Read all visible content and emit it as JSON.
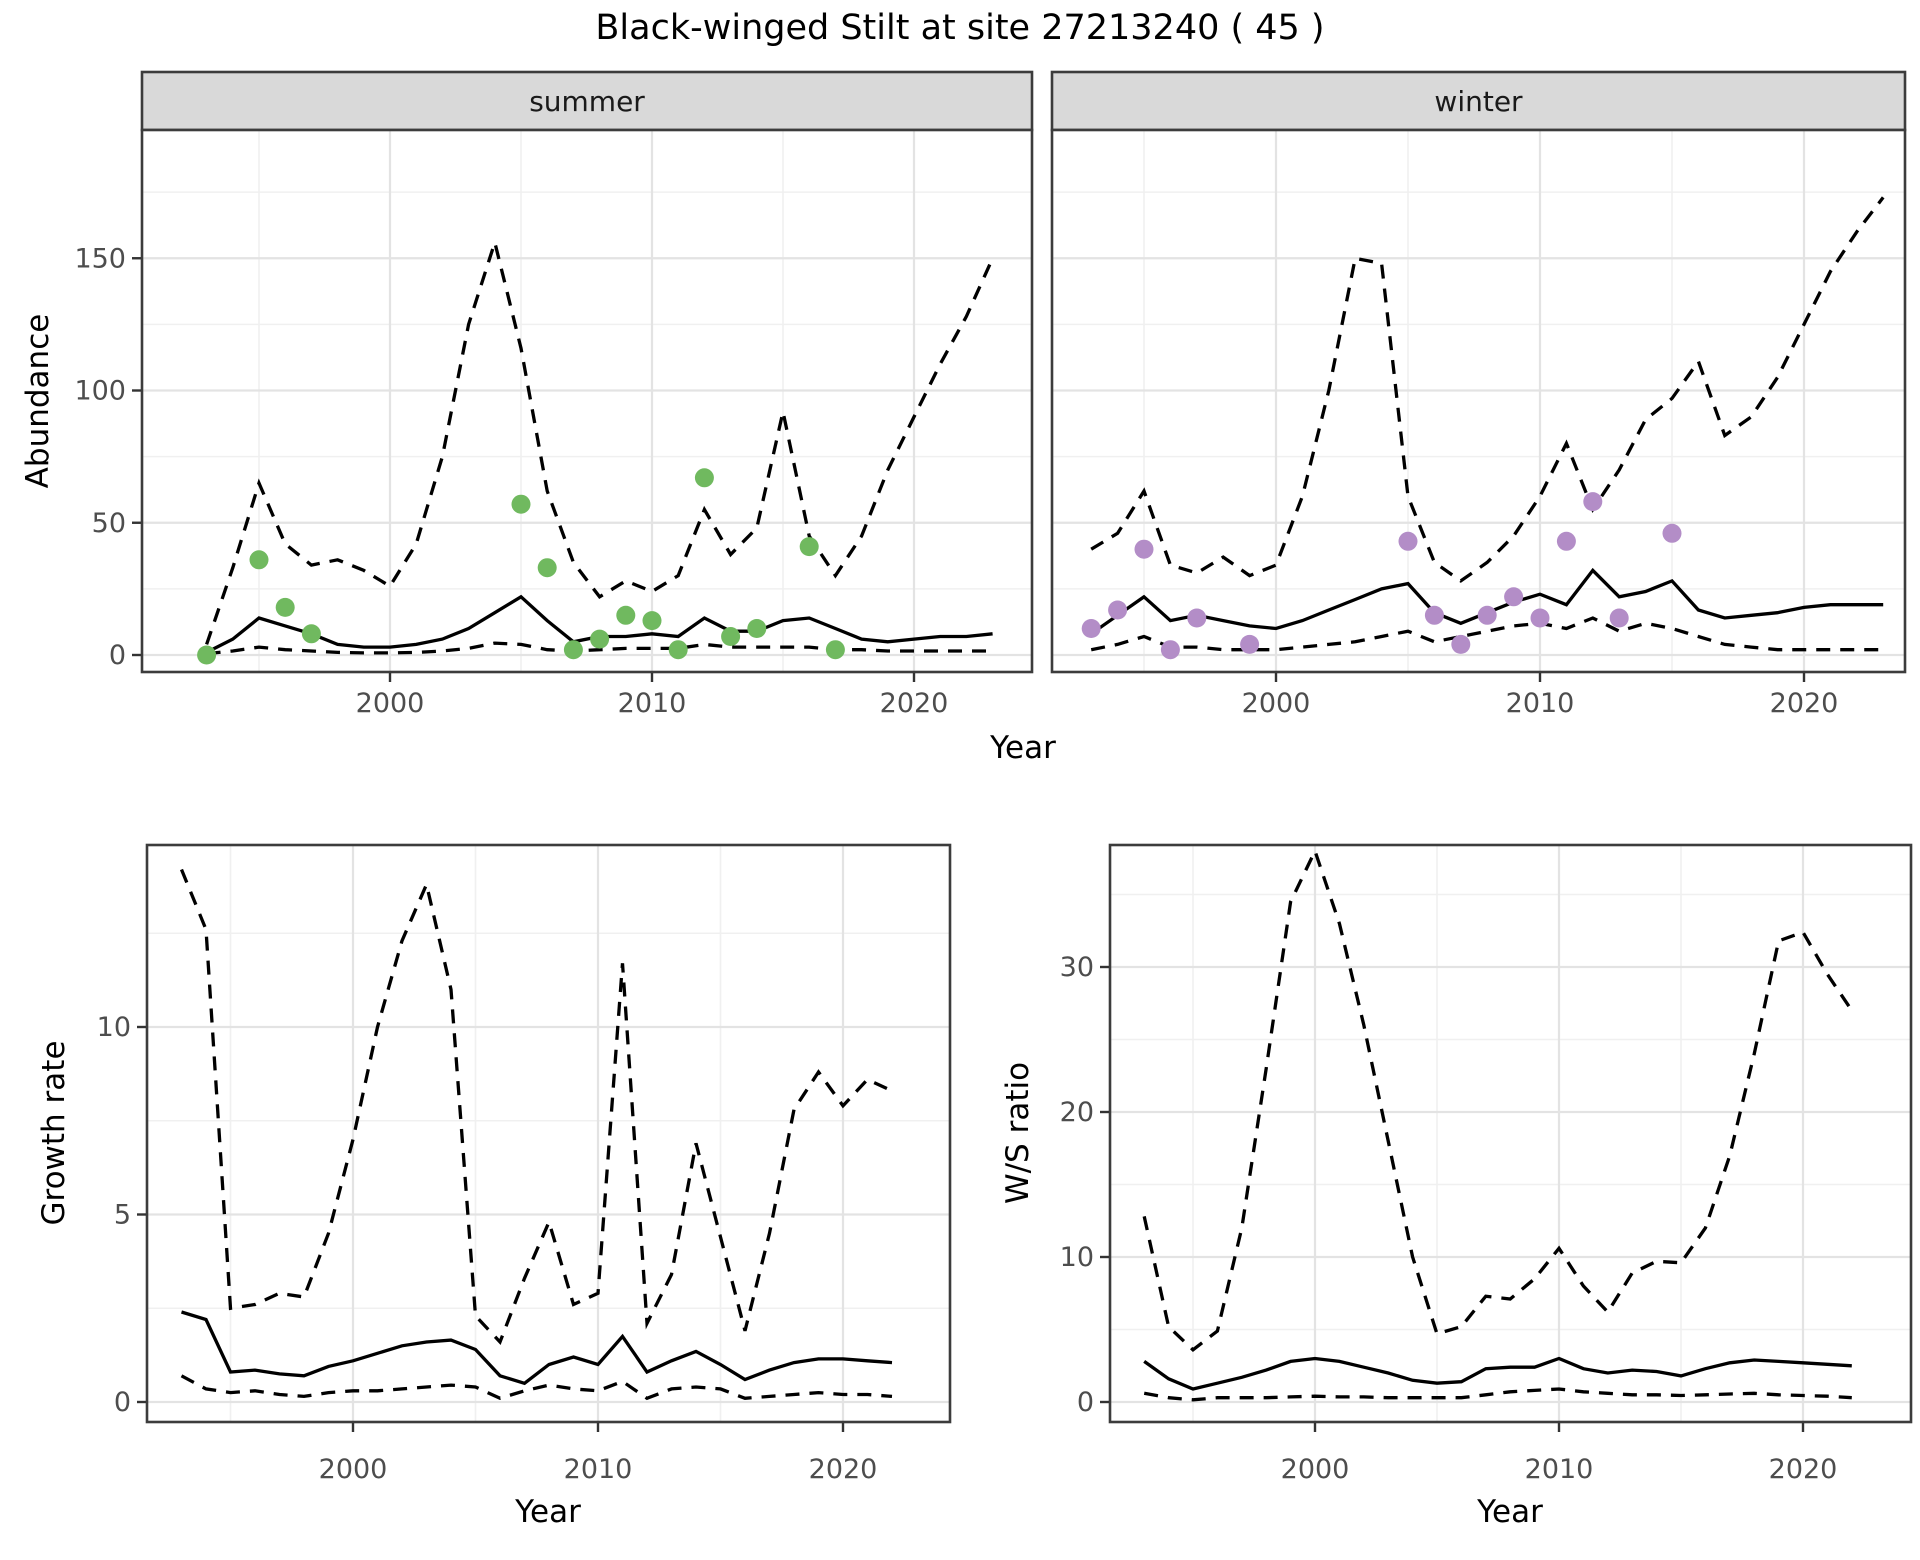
{
  "title": "Black-winged Stilt at site 27213240 ( 45 )",
  "facets": [
    {
      "label": "summer"
    },
    {
      "label": "winter"
    }
  ],
  "axis_titles": {
    "abundance": "Abundance",
    "year": "Year",
    "growth": "Growth rate",
    "ws": "W/S ratio"
  },
  "colors": {
    "summer_point": "#70b95f",
    "winter_point": "#b38dc7",
    "line": "#000000",
    "strip_bg": "#d9d9d9",
    "panel_border": "#3c3c3c",
    "grid_major": "#e3e3e3",
    "grid_minor": "#f0f0f0",
    "tick_label": "#4d4d4d",
    "background": "#ffffff"
  },
  "chart_data": [
    {
      "type": "line",
      "facet": "summer",
      "title": "Abundance - summer facet",
      "xlabel": "Year",
      "ylabel": "Abundance",
      "x": [
        1993,
        1994,
        1995,
        1996,
        1997,
        1998,
        1999,
        2000,
        2001,
        2002,
        2003,
        2004,
        2005,
        2006,
        2007,
        2008,
        2009,
        2010,
        2011,
        2012,
        2013,
        2014,
        2015,
        2016,
        2017,
        2018,
        2019,
        2020,
        2021,
        2022,
        2023
      ],
      "series": [
        {
          "name": "lower_CI",
          "linetype": "dashed",
          "values": [
            0.5,
            1.5,
            3,
            2,
            1.5,
            1,
            0.8,
            0.8,
            1,
            1.5,
            2.5,
            4.5,
            4,
            2,
            1.5,
            2,
            2.5,
            2.5,
            2.5,
            4,
            3,
            3,
            3,
            3,
            2,
            2,
            1.5,
            1.5,
            1.5,
            1.5,
            1.5
          ]
        },
        {
          "name": "upper_CI",
          "linetype": "dashed",
          "values": [
            4,
            33,
            65,
            42,
            34,
            36,
            32,
            26,
            42,
            75,
            125,
            156,
            116,
            62,
            35,
            22,
            28,
            24,
            30,
            55,
            38,
            48,
            92,
            45,
            30,
            45,
            70,
            90,
            110,
            128,
            150
          ]
        },
        {
          "name": "median",
          "linetype": "solid",
          "values": [
            1,
            6,
            14,
            11,
            8,
            4,
            3,
            3,
            4,
            6,
            10,
            16,
            22,
            13,
            5,
            7,
            7,
            8,
            7,
            14,
            9,
            9,
            13,
            14,
            10,
            6,
            5,
            6,
            7,
            7,
            8
          ]
        }
      ],
      "scatter": {
        "name": "observed_counts",
        "color": "#70b95f",
        "points": [
          [
            1993,
            0
          ],
          [
            1995,
            36
          ],
          [
            1996,
            18
          ],
          [
            1997,
            8
          ],
          [
            2005,
            57
          ],
          [
            2006,
            33
          ],
          [
            2007,
            2
          ],
          [
            2008,
            6
          ],
          [
            2009,
            15
          ],
          [
            2010,
            13
          ],
          [
            2011,
            2
          ],
          [
            2012,
            67
          ],
          [
            2013,
            7
          ],
          [
            2014,
            10
          ],
          [
            2016,
            41
          ],
          [
            2017,
            2
          ]
        ]
      },
      "xticks": [
        2000,
        2010,
        2020
      ],
      "yticks": [
        0,
        50,
        100,
        150
      ],
      "xlim": [
        1990.5,
        2024.5
      ],
      "ylim": [
        -6.4,
        198.5
      ],
      "grid": true,
      "legend": "none"
    },
    {
      "type": "line",
      "facet": "winter",
      "title": "Abundance - winter facet",
      "xlabel": "Year",
      "ylabel": "Abundance",
      "x": [
        1993,
        1994,
        1995,
        1996,
        1997,
        1998,
        1999,
        2000,
        2001,
        2002,
        2003,
        2004,
        2005,
        2006,
        2007,
        2008,
        2009,
        2010,
        2011,
        2012,
        2013,
        2014,
        2015,
        2016,
        2017,
        2018,
        2019,
        2020,
        2021,
        2022,
        2023
      ],
      "series": [
        {
          "name": "lower_CI",
          "linetype": "dashed",
          "values": [
            2,
            4,
            7,
            3,
            3,
            2,
            2,
            2,
            3,
            4,
            5,
            7,
            9,
            5,
            7,
            9,
            11,
            12,
            10,
            14,
            9,
            12,
            10,
            7,
            4,
            3,
            2,
            2,
            2,
            2,
            2
          ]
        },
        {
          "name": "upper_CI",
          "linetype": "dashed",
          "values": [
            40,
            46,
            62,
            34,
            31,
            37,
            30,
            34,
            60,
            100,
            150,
            148,
            60,
            35,
            28,
            35,
            45,
            60,
            80,
            55,
            70,
            89,
            97,
            111,
            83,
            90,
            105,
            125,
            145,
            160,
            173
          ]
        },
        {
          "name": "median",
          "linetype": "solid",
          "values": [
            8,
            15,
            22,
            13,
            15,
            13,
            11,
            10,
            13,
            17,
            21,
            25,
            27,
            16,
            12,
            16,
            20,
            23,
            19,
            32,
            22,
            24,
            28,
            17,
            14,
            15,
            16,
            18,
            19,
            19,
            19
          ]
        }
      ],
      "scatter": {
        "name": "observed_counts",
        "color": "#b38dc7",
        "points": [
          [
            1993,
            10
          ],
          [
            1994,
            17
          ],
          [
            1995,
            40
          ],
          [
            1996,
            2
          ],
          [
            1997,
            14
          ],
          [
            1999,
            4
          ],
          [
            2005,
            43
          ],
          [
            2006,
            15
          ],
          [
            2007,
            4
          ],
          [
            2008,
            15
          ],
          [
            2009,
            22
          ],
          [
            2010,
            14
          ],
          [
            2011,
            43
          ],
          [
            2012,
            58
          ],
          [
            2013,
            14
          ],
          [
            2015,
            46
          ]
        ]
      },
      "xticks": [
        2000,
        2010,
        2020
      ],
      "yticks": [
        0,
        50,
        100,
        150
      ],
      "xlim": [
        1991.5,
        2023.8
      ],
      "ylim": [
        -6.4,
        198.5
      ],
      "grid": true,
      "legend": "none"
    },
    {
      "type": "line",
      "facet": null,
      "title": "Growth rate",
      "xlabel": "Year",
      "ylabel": "Growth rate",
      "x": [
        1993,
        1994,
        1995,
        1996,
        1997,
        1998,
        1999,
        2000,
        2001,
        2002,
        2003,
        2004,
        2005,
        2006,
        2007,
        2008,
        2009,
        2010,
        2011,
        2012,
        2013,
        2014,
        2015,
        2016,
        2017,
        2018,
        2019,
        2020,
        2021,
        2022
      ],
      "series": [
        {
          "name": "lower_CI",
          "linetype": "dashed",
          "values": [
            0.7,
            0.35,
            0.25,
            0.3,
            0.2,
            0.15,
            0.25,
            0.3,
            0.3,
            0.35,
            0.4,
            0.45,
            0.4,
            0.1,
            0.3,
            0.45,
            0.35,
            0.3,
            0.55,
            0.1,
            0.35,
            0.4,
            0.35,
            0.1,
            0.15,
            0.2,
            0.25,
            0.2,
            0.2,
            0.15
          ]
        },
        {
          "name": "upper_CI",
          "linetype": "dashed",
          "values": [
            14.2,
            12.6,
            2.5,
            2.6,
            2.9,
            2.8,
            4.5,
            7,
            10,
            12.3,
            13.8,
            11,
            2.3,
            1.6,
            3.3,
            4.8,
            2.6,
            2.9,
            11.7,
            2.1,
            3.4,
            6.9,
            4.4,
            1.9,
            4.5,
            7.8,
            8.8,
            7.9,
            8.6,
            8.3
          ]
        },
        {
          "name": "median",
          "linetype": "solid",
          "values": [
            2.4,
            2.2,
            0.8,
            0.85,
            0.75,
            0.7,
            0.95,
            1.1,
            1.3,
            1.5,
            1.6,
            1.65,
            1.4,
            0.7,
            0.5,
            1.0,
            1.2,
            1.0,
            1.75,
            0.8,
            1.1,
            1.35,
            1.0,
            0.6,
            0.85,
            1.05,
            1.15,
            1.15,
            1.1,
            1.05
          ]
        }
      ],
      "scatter": null,
      "xticks": [
        2000,
        2010,
        2020
      ],
      "yticks": [
        0,
        5,
        10
      ],
      "xlim": [
        1991.6,
        2024.4
      ],
      "ylim": [
        -0.53,
        14.85
      ],
      "grid": true,
      "legend": "none"
    },
    {
      "type": "line",
      "facet": null,
      "title": "W/S ratio",
      "xlabel": "Year",
      "ylabel": "W/S ratio",
      "x": [
        1993,
        1994,
        1995,
        1996,
        1997,
        1998,
        1999,
        2000,
        2001,
        2002,
        2003,
        2004,
        2005,
        2006,
        2007,
        2008,
        2009,
        2010,
        2011,
        2012,
        2013,
        2014,
        2015,
        2016,
        2017,
        2018,
        2019,
        2020,
        2021,
        2022
      ],
      "series": [
        {
          "name": "lower_CI",
          "linetype": "dashed",
          "values": [
            0.6,
            0.3,
            0.15,
            0.3,
            0.3,
            0.3,
            0.35,
            0.4,
            0.35,
            0.35,
            0.3,
            0.3,
            0.3,
            0.3,
            0.5,
            0.7,
            0.8,
            0.9,
            0.7,
            0.6,
            0.5,
            0.5,
            0.45,
            0.5,
            0.55,
            0.6,
            0.5,
            0.45,
            0.4,
            0.3
          ]
        },
        {
          "name": "upper_CI",
          "linetype": "dashed",
          "values": [
            12.8,
            5.2,
            3.6,
            4.9,
            12,
            23,
            34.5,
            38,
            33,
            26,
            18,
            10,
            4.7,
            5.2,
            7.3,
            7.1,
            8.5,
            10.6,
            8.0,
            6.2,
            8.9,
            9.7,
            9.6,
            12,
            17,
            24,
            31.8,
            32.4,
            29.5,
            27
          ]
        },
        {
          "name": "median",
          "linetype": "solid",
          "values": [
            2.8,
            1.6,
            0.9,
            1.3,
            1.7,
            2.2,
            2.8,
            3.0,
            2.8,
            2.4,
            2.0,
            1.5,
            1.3,
            1.4,
            2.3,
            2.4,
            2.4,
            3.0,
            2.3,
            2.0,
            2.2,
            2.1,
            1.8,
            2.3,
            2.7,
            2.9,
            2.8,
            2.7,
            2.6,
            2.5
          ]
        }
      ],
      "scatter": null,
      "xticks": [
        2000,
        2010,
        2020
      ],
      "yticks": [
        0,
        10,
        20,
        30
      ],
      "xlim": [
        1991.6,
        2024.4
      ],
      "ylim": [
        -1.38,
        38.4
      ],
      "grid": true,
      "legend": "none"
    }
  ]
}
